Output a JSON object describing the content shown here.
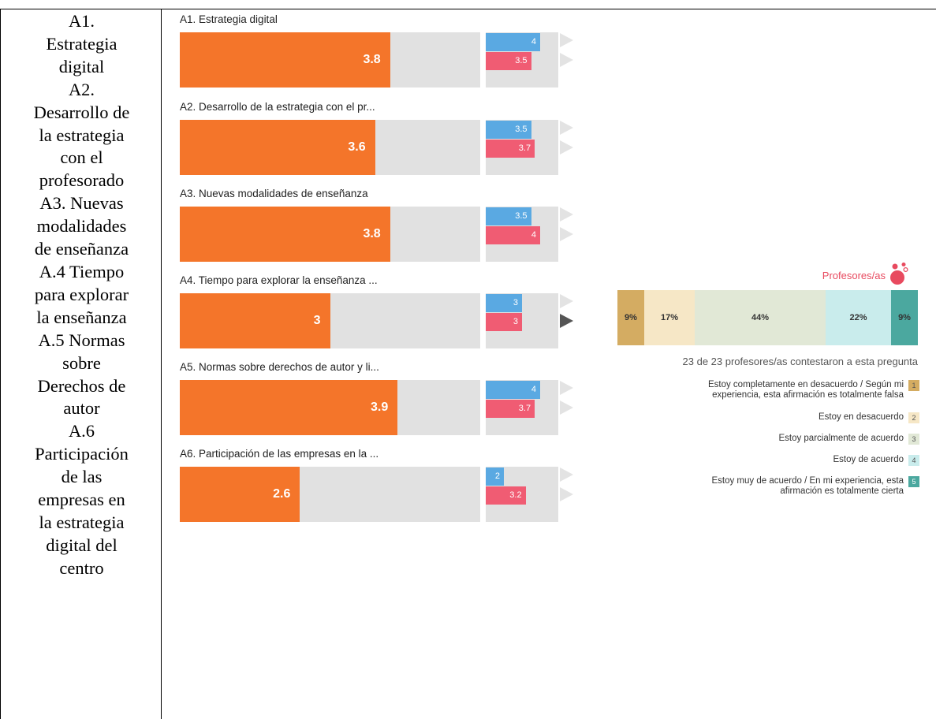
{
  "left_column": {
    "text": "A1.\nEstrategia\ndigital\nA2.\nDesarrollo de\nla estrategia\ncon el\nprofesorado\nA3. Nuevas\nmodalidades\nde enseñanza\nA.4 Tiempo\npara explorar\nla enseñanza\nA.5 Normas\nsobre\nDerechos de\nautor\nA.6\nParticipación\nde las\nempresas en\nla estrategia\ndigital del\ncentro"
  },
  "colors": {
    "main_bar": "#f4752a",
    "track": "#e1e1e1",
    "series_blue": "#5aa9e2",
    "series_red": "#f05c73",
    "arrow_inactive": "#e3e3e3",
    "arrow_active": "#555555"
  },
  "chart_data": [
    {
      "type": "bar",
      "orientation": "horizontal",
      "xlim": [
        1,
        5
      ],
      "categories": [
        "A1. Estrategia digital",
        "A2. Desarrollo de la estrategia con el pr...",
        "A3. Nuevas modalidades de enseñanza",
        "A4. Tiempo para explorar la enseñanza ...",
        "A5. Normas sobre derechos de autor y li...",
        "A6. Participación de las empresas en la ..."
      ],
      "values": [
        3.8,
        3.6,
        3.8,
        3,
        3.9,
        2.6
      ],
      "value_labels": [
        "3.8",
        "3.6",
        "3.8",
        "3",
        "3.9",
        "2.6"
      ],
      "comparison": {
        "xlim": [
          1,
          5
        ],
        "series": [
          {
            "values": [
              4,
              3.5,
              3.5,
              3,
              4,
              2
            ],
            "labels": [
              "4",
              "3.5",
              "3.5",
              "3",
              "4",
              "2"
            ],
            "color": "#5aa9e2"
          },
          {
            "values": [
              3.5,
              3.7,
              4,
              3,
              3.7,
              3.2
            ],
            "labels": [
              "3.5",
              "3.7",
              "4",
              "3",
              "3.7",
              "3.2"
            ],
            "color": "#f05c73"
          }
        ]
      },
      "selected_item": 3,
      "selected_row": 1
    },
    {
      "type": "bar",
      "orientation": "horizontal",
      "stacked": true,
      "group_label": "Profesores/as",
      "icon": "people-icon",
      "categories": [
        "1",
        "2",
        "3",
        "4",
        "5"
      ],
      "values": [
        9,
        17,
        44,
        22,
        9
      ],
      "value_labels": [
        "9%",
        "17%",
        "44%",
        "22%",
        "9%"
      ],
      "colors": [
        "#d4ac62",
        "#f6e7c6",
        "#e1e8d6",
        "#c9ecec",
        "#4ba89f"
      ],
      "response_note": "23 de 23 profesores/as contestaron a esta pregunta",
      "legend": [
        {
          "text": "Estoy completamente en desacuerdo / Según mi\nexperiencia, esta afirmación es totalmente falsa",
          "code": "1"
        },
        {
          "text": "Estoy en desacuerdo",
          "code": "2"
        },
        {
          "text": "Estoy parcialmente de acuerdo",
          "code": "3"
        },
        {
          "text": "Estoy de acuerdo",
          "code": "4"
        },
        {
          "text": "Estoy muy de acuerdo / En mi experiencia, esta\nafirmación es totalmente cierta",
          "code": "5"
        }
      ],
      "legend_position": "bottom-right"
    }
  ]
}
